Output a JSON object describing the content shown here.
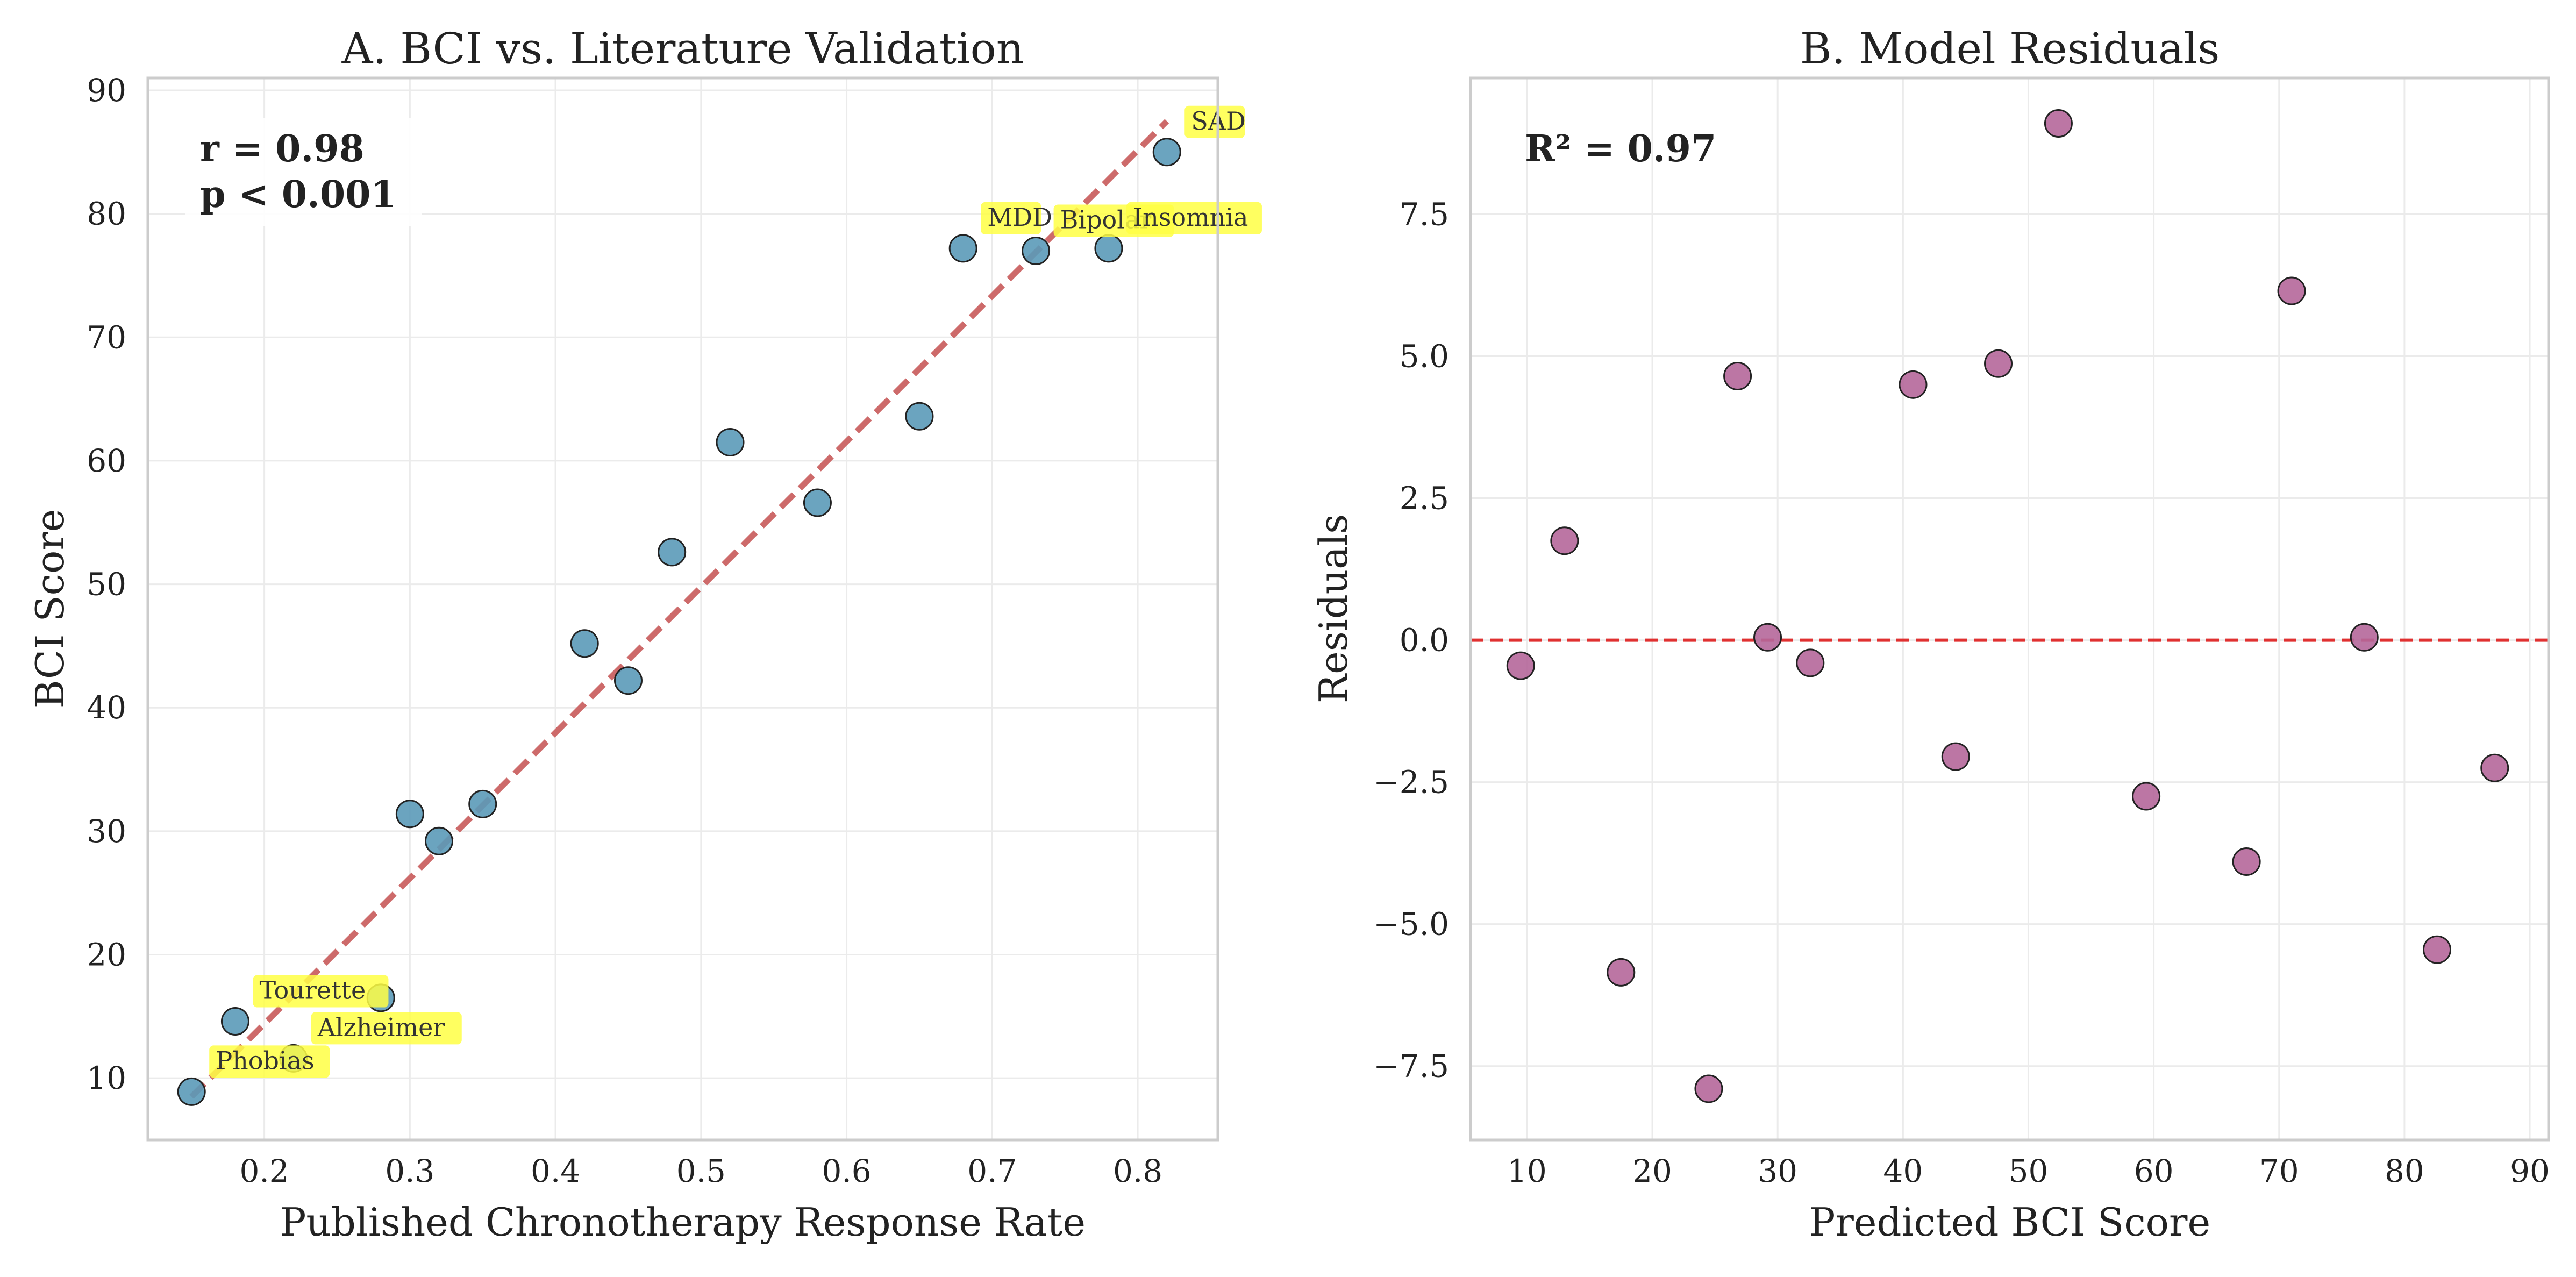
{
  "chart_data": [
    {
      "type": "scatter",
      "title": "A. BCI vs. Literature Validation",
      "xlabel": "Published Chronotherapy Response Rate",
      "ylabel": "BCI Score",
      "xlim": [
        0.12,
        0.855
      ],
      "ylim": [
        5,
        91
      ],
      "xticks": [
        0.2,
        0.3,
        0.4,
        0.5,
        0.6,
        0.7,
        0.8
      ],
      "xtick_labels": [
        "0.2",
        "0.3",
        "0.4",
        "0.5",
        "0.6",
        "0.7",
        "0.8"
      ],
      "yticks": [
        10,
        20,
        30,
        40,
        50,
        60,
        70,
        80,
        90
      ],
      "ytick_labels": [
        "10",
        "20",
        "30",
        "40",
        "50",
        "60",
        "70",
        "80",
        "90"
      ],
      "grid": true,
      "point_color": "#5b9ab8",
      "line_color": "#cd6a6a",
      "annot_color": "#ffff44",
      "stats": [
        "r = 0.98",
        "p < 0.001"
      ],
      "points": [
        {
          "x": 0.15,
          "y": 8.9
        },
        {
          "x": 0.18,
          "y": 14.6
        },
        {
          "x": 0.22,
          "y": 11.6
        },
        {
          "x": 0.28,
          "y": 16.5
        },
        {
          "x": 0.3,
          "y": 31.4
        },
        {
          "x": 0.32,
          "y": 29.2
        },
        {
          "x": 0.35,
          "y": 32.2
        },
        {
          "x": 0.42,
          "y": 45.2
        },
        {
          "x": 0.45,
          "y": 42.2
        },
        {
          "x": 0.48,
          "y": 52.6
        },
        {
          "x": 0.52,
          "y": 61.5
        },
        {
          "x": 0.58,
          "y": 56.6
        },
        {
          "x": 0.65,
          "y": 63.6
        },
        {
          "x": 0.68,
          "y": 77.2
        },
        {
          "x": 0.73,
          "y": 77.0
        },
        {
          "x": 0.78,
          "y": 77.2
        },
        {
          "x": 0.82,
          "y": 85.0
        }
      ],
      "fit_line": [
        {
          "x": 0.15,
          "y": 8.5
        },
        {
          "x": 0.82,
          "y": 87.5
        }
      ],
      "annotations": [
        {
          "text": "SAD",
          "x": 0.82,
          "y": 85.0
        },
        {
          "text": "MDD",
          "x": 0.68,
          "y": 77.2
        },
        {
          "text": "Bipolar",
          "x": 0.73,
          "y": 77.0
        },
        {
          "text": "Insomnia",
          "x": 0.78,
          "y": 77.2
        },
        {
          "text": "Tourette",
          "x": 0.18,
          "y": 14.6
        },
        {
          "text": "Alzheimer",
          "x": 0.22,
          "y": 11.6
        },
        {
          "text": "Phobias",
          "x": 0.15,
          "y": 8.9
        }
      ]
    },
    {
      "type": "scatter",
      "title": "B. Model Residuals",
      "xlabel": "Predicted BCI Score",
      "ylabel": "Residuals",
      "xlim": [
        5.5,
        91.5
      ],
      "ylim": [
        -8.8,
        9.9
      ],
      "xticks": [
        10,
        20,
        30,
        40,
        50,
        60,
        70,
        80,
        90
      ],
      "xtick_labels": [
        "10",
        "20",
        "30",
        "40",
        "50",
        "60",
        "70",
        "80",
        "90"
      ],
      "yticks": [
        -7.5,
        -5.0,
        -2.5,
        0.0,
        2.5,
        5.0,
        7.5
      ],
      "ytick_labels": [
        "−7.5",
        "−5.0",
        "−2.5",
        "0.0",
        "2.5",
        "5.0",
        "7.5"
      ],
      "grid": true,
      "point_color": "#b5679a",
      "zero_line_color": "#e03030",
      "stats": [
        "R² = 0.97"
      ],
      "points": [
        {
          "x": 9.5,
          "y": -0.45
        },
        {
          "x": 13.0,
          "y": 1.75
        },
        {
          "x": 17.5,
          "y": -5.85
        },
        {
          "x": 24.5,
          "y": -7.9
        },
        {
          "x": 26.8,
          "y": 4.65
        },
        {
          "x": 29.2,
          "y": 0.05
        },
        {
          "x": 32.6,
          "y": -0.4
        },
        {
          "x": 40.8,
          "y": 4.5
        },
        {
          "x": 44.2,
          "y": -2.05
        },
        {
          "x": 47.6,
          "y": 4.87
        },
        {
          "x": 52.4,
          "y": 9.1
        },
        {
          "x": 59.4,
          "y": -2.75
        },
        {
          "x": 67.4,
          "y": -3.9
        },
        {
          "x": 71.0,
          "y": 6.15
        },
        {
          "x": 76.8,
          "y": 0.05
        },
        {
          "x": 82.6,
          "y": -5.45
        },
        {
          "x": 87.2,
          "y": -2.25
        }
      ]
    }
  ]
}
